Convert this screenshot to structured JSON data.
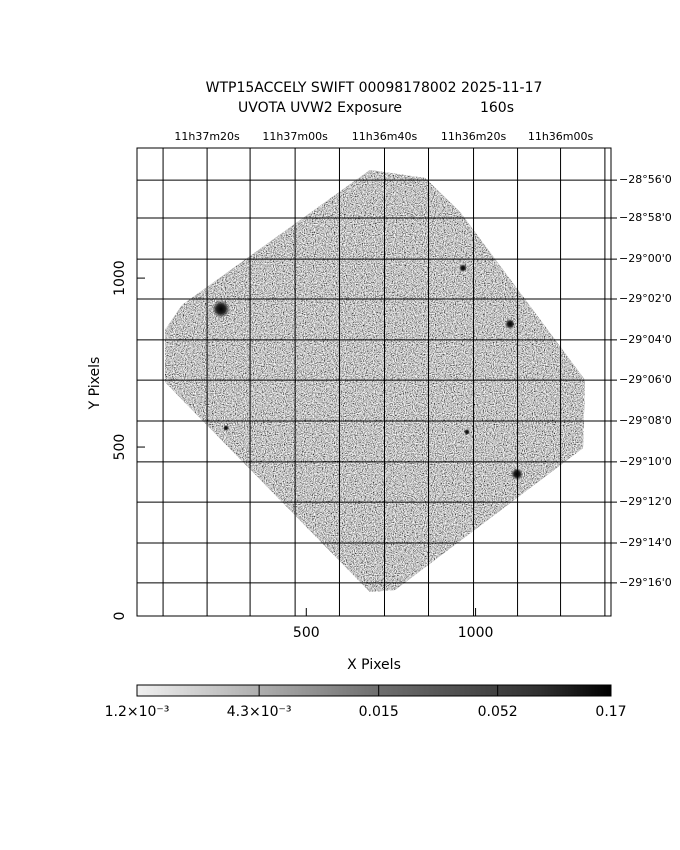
{
  "chart_data": {
    "type": "image",
    "title": "WTP15ACCELY SWIFT 00098178002 2025-11-17",
    "subtitle": "UVOTA UVW2 Exposure",
    "exposure": "160s",
    "xlabel": "X Pixels",
    "ylabel": "Y Pixels",
    "xlim": [
      0,
      1400
    ],
    "ylim": [
      0,
      1385
    ],
    "xticks": [
      500,
      1000
    ],
    "yticks": [
      0,
      500,
      1000
    ],
    "ra_ticks": [
      {
        "value": 207,
        "label": "11h37m20s"
      },
      {
        "value": 467,
        "label": "11h37m00s"
      },
      {
        "value": 731,
        "label": "11h36m40s"
      },
      {
        "value": 994,
        "label": "11h36m20s"
      },
      {
        "value": 1251,
        "label": "11h36m00s"
      }
    ],
    "ra_grid": [
      77,
      334,
      598,
      861,
      1124,
      1382
    ],
    "dec_ticks": [
      {
        "value": 1290,
        "label": "−28°56'0"
      },
      {
        "value": 1178,
        "label": "−28°58'0"
      },
      {
        "value": 1056,
        "label": "−29°00'0"
      },
      {
        "value": 938,
        "label": "−29°02'0"
      },
      {
        "value": 817,
        "label": "−29°04'0"
      },
      {
        "value": 698,
        "label": "−29°06'0"
      },
      {
        "value": 577,
        "label": "−29°08'0"
      },
      {
        "value": 456,
        "label": "−29°10'0"
      },
      {
        "value": 337,
        "label": "−29°12'0"
      },
      {
        "value": 216,
        "label": "−29°14'0"
      },
      {
        "value": 98,
        "label": "−29°16'0"
      }
    ],
    "colorbar": {
      "scale": "log",
      "clim": [
        0.0012,
        0.17
      ],
      "ticks": [
        {
          "value": 0.0012,
          "label": "1.2×10⁻³"
        },
        {
          "value": 0.0043,
          "label": "4.3×10⁻³"
        },
        0.015,
        0.052,
        0.17
      ]
    }
  }
}
